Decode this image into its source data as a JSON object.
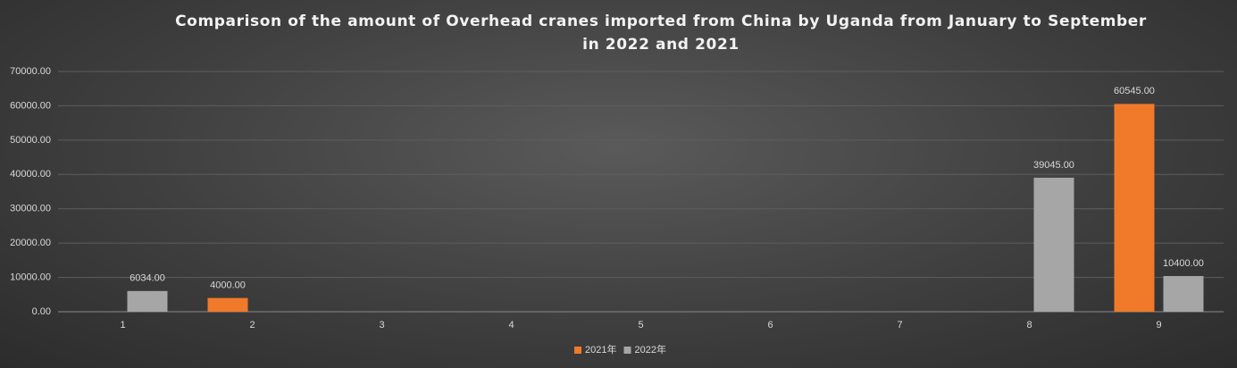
{
  "chart_data": {
    "type": "bar",
    "title": "Comparison of the amount of Overhead cranes imported from China by Uganda from January to September in 2022 and 2021",
    "categories": [
      "1",
      "2",
      "3",
      "4",
      "5",
      "6",
      "7",
      "8",
      "9"
    ],
    "series": [
      {
        "name": "2021年",
        "color": "#f07a2a",
        "values": [
          null,
          4000,
          null,
          null,
          null,
          null,
          null,
          null,
          60545
        ],
        "value_labels": [
          null,
          "4000.00",
          null,
          null,
          null,
          null,
          null,
          null,
          "60545.00"
        ]
      },
      {
        "name": "2022年",
        "color": "#a6a6a6",
        "values": [
          6034,
          null,
          null,
          null,
          null,
          null,
          null,
          39045,
          10400
        ],
        "value_labels": [
          "6034.00",
          null,
          null,
          null,
          null,
          null,
          null,
          "39045.00",
          "10400.00"
        ]
      }
    ],
    "ylim": [
      0,
      70000
    ],
    "yticks": [
      {
        "value": 0,
        "label": "0.00"
      },
      {
        "value": 10000,
        "label": "10000.00"
      },
      {
        "value": 20000,
        "label": "20000.00"
      },
      {
        "value": 30000,
        "label": "30000.00"
      },
      {
        "value": 40000,
        "label": "40000.00"
      },
      {
        "value": 50000,
        "label": "50000.00"
      },
      {
        "value": 60000,
        "label": "60000.00"
      },
      {
        "value": 70000,
        "label": "70000.00"
      }
    ],
    "grid": true,
    "legend": "bottom"
  }
}
